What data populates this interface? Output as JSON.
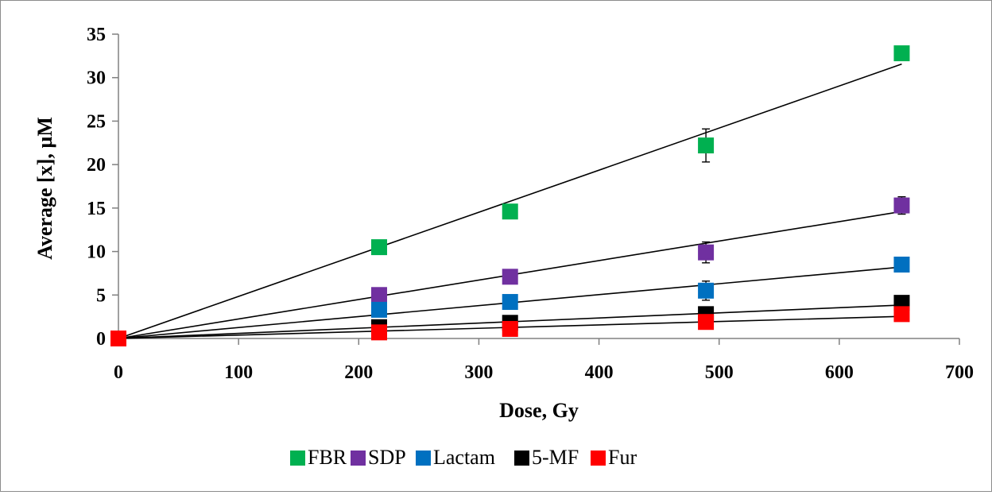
{
  "chart_data": {
    "type": "scatter",
    "title": "",
    "xlabel": "Dose, Gy",
    "ylabel": "Average [x], µM",
    "xlim": [
      0,
      700
    ],
    "ylim": [
      0,
      35
    ],
    "xticks": [
      "0",
      "100",
      "200",
      "300",
      "400",
      "500",
      "600",
      "700"
    ],
    "yticks": [
      "0",
      "5",
      "10",
      "15",
      "20",
      "25",
      "30",
      "35"
    ],
    "grid": false,
    "legend_position": "bottom",
    "trendlines": "linear",
    "x": [
      0,
      217,
      326,
      489,
      652
    ],
    "series": [
      {
        "name": "FBR",
        "color": "#00b050",
        "values": [
          0,
          10.5,
          14.6,
          22.2,
          32.8
        ],
        "errors": [
          0,
          0.3,
          0.3,
          1.9,
          0.4
        ],
        "slope": 0.0484
      },
      {
        "name": "SDP",
        "color": "#7030a0",
        "values": [
          0,
          5.0,
          7.1,
          9.9,
          15.3
        ],
        "errors": [
          0,
          0.2,
          0.2,
          1.2,
          1.0
        ],
        "slope": 0.0224
      },
      {
        "name": "Lactam",
        "color": "#0070c0",
        "values": [
          0,
          3.3,
          4.2,
          5.5,
          8.5
        ],
        "errors": [
          0,
          0.2,
          0.2,
          1.1,
          0.3
        ],
        "slope": 0.0126
      },
      {
        "name": "5-MF",
        "color": "#000000",
        "values": [
          0,
          1.3,
          1.8,
          2.8,
          4.1
        ],
        "errors": [
          0,
          0.1,
          0.1,
          0.3,
          0.2
        ],
        "slope": 0.0059
      },
      {
        "name": "Fur",
        "color": "#ff0000",
        "values": [
          0,
          0.7,
          1.1,
          1.9,
          2.8
        ],
        "errors": [
          0,
          0.1,
          0.1,
          0.3,
          0.2
        ],
        "slope": 0.0039
      }
    ]
  }
}
